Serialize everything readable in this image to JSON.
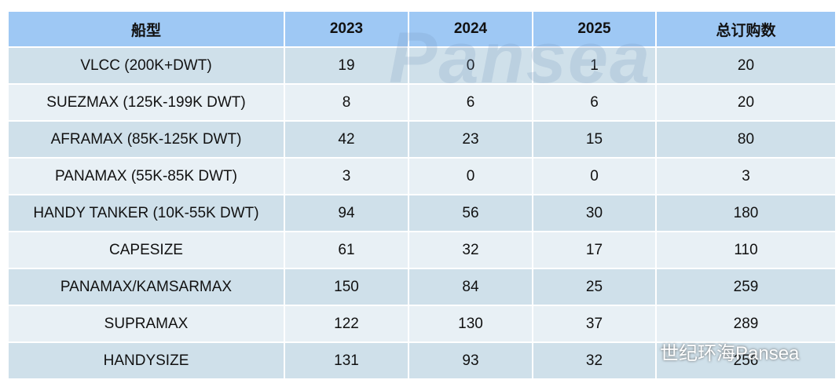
{
  "table": {
    "header": [
      "船型",
      "2023",
      "2024",
      "2025",
      "总订购数"
    ],
    "rows": [
      [
        "VLCC (200K+DWT)",
        19,
        0,
        1,
        20
      ],
      [
        "SUEZMAX (125K-199K DWT)",
        8,
        6,
        6,
        20
      ],
      [
        "AFRAMAX (85K-125K DWT)",
        42,
        23,
        15,
        80
      ],
      [
        "PANAMAX (55K-85K DWT)",
        3,
        0,
        0,
        3
      ],
      [
        "HANDY TANKER (10K-55K DWT)",
        94,
        56,
        30,
        180
      ],
      [
        "CAPESIZE",
        61,
        32,
        17,
        110
      ],
      [
        "PANAMAX/KAMSARMAX",
        150,
        84,
        25,
        259
      ],
      [
        "SUPRAMAX",
        122,
        130,
        37,
        289
      ],
      [
        "HANDYSIZE",
        131,
        93,
        32,
        256
      ]
    ]
  },
  "watermark": {
    "logo": "Pansea",
    "caption": "世纪环海Pansea"
  }
}
